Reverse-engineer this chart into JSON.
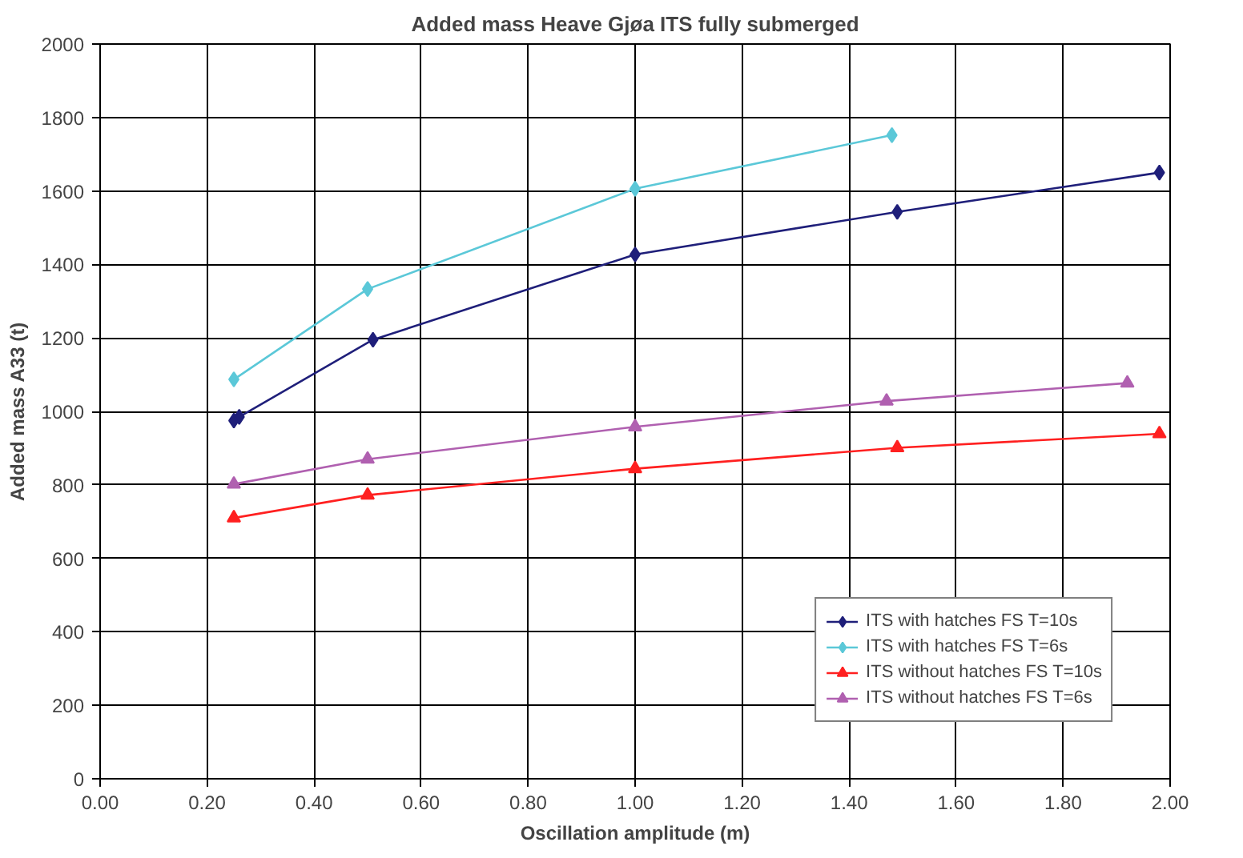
{
  "chart_data": {
    "type": "line",
    "title": "Added mass Heave Gjøa ITS fully submerged",
    "xlabel": "Oscillation amplitude (m)",
    "ylabel": "Added mass A33 (t)",
    "xlim": [
      0,
      2
    ],
    "xticks": [
      {
        "value": 0,
        "label": "0.00"
      },
      {
        "value": 0.2,
        "label": "0.20"
      },
      {
        "value": 0.4,
        "label": "0.40"
      },
      {
        "value": 0.6,
        "label": "0.60"
      },
      {
        "value": 0.8,
        "label": "0.80"
      },
      {
        "value": 1.0,
        "label": "1.00"
      },
      {
        "value": 1.2,
        "label": "1.20"
      },
      {
        "value": 1.4,
        "label": "1.40"
      },
      {
        "value": 1.6,
        "label": "1.60"
      },
      {
        "value": 1.8,
        "label": "1.80"
      },
      {
        "value": 2.0,
        "label": "2.00"
      }
    ],
    "ylim": [
      0,
      2000
    ],
    "yticks": [
      0,
      200,
      400,
      600,
      800,
      1000,
      1200,
      1400,
      1600,
      1800,
      2000
    ],
    "grid": true,
    "legend": "bottom right",
    "line_style": "solid",
    "series": [
      {
        "name": "ITS with hatches FS T=10s",
        "color": "#1f1f7a",
        "marker": "diamond",
        "x": [
          0.25,
          0.26,
          0.51,
          1.0,
          1.49,
          1.98
        ],
        "values": [
          975,
          985,
          1195,
          1427,
          1543,
          1650
        ]
      },
      {
        "name": "ITS with hatches FS T=6s",
        "color": "#5bc8d8",
        "marker": "diamond",
        "x": [
          0.25,
          0.5,
          1.0,
          1.48
        ],
        "values": [
          1087,
          1333,
          1606,
          1752
        ]
      },
      {
        "name": "ITS without hatches FS T=10s",
        "color": "#ff2020",
        "marker": "triangle",
        "x": [
          0.25,
          0.5,
          1.0,
          1.49,
          1.98
        ],
        "values": [
          710,
          772,
          844,
          901,
          939
        ]
      },
      {
        "name": "ITS without hatches FS T=6s",
        "color": "#b060b0",
        "marker": "triangle",
        "x": [
          0.25,
          0.5,
          1.0,
          1.47,
          1.92
        ],
        "values": [
          802,
          870,
          958,
          1028,
          1077
        ]
      }
    ]
  }
}
